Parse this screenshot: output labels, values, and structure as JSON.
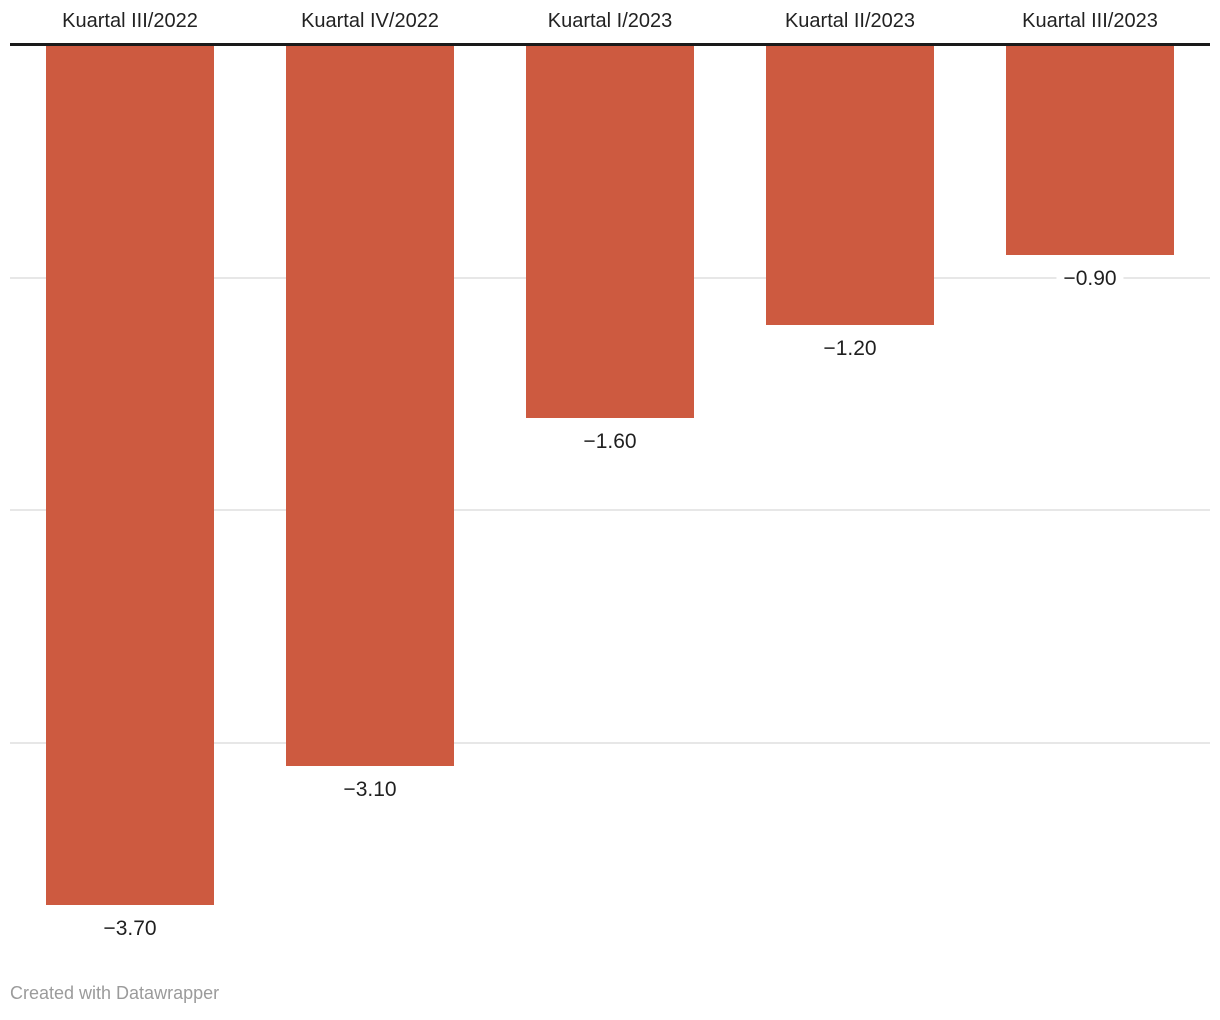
{
  "chart_data": {
    "type": "bar",
    "categories": [
      "Kuartal III/2022",
      "Kuartal IV/2022",
      "Kuartal I/2023",
      "Kuartal II/2023",
      "Kuartal III/2023"
    ],
    "values": [
      -3.7,
      -3.1,
      -1.6,
      -1.2,
      -0.9
    ],
    "value_labels": [
      "−3.70",
      "−3.10",
      "−1.60",
      "−1.20",
      "−0.90"
    ],
    "title": "",
    "xlabel": "",
    "ylabel": "",
    "ylim": [
      -4,
      0
    ],
    "gridline_values": [
      -1,
      -2,
      -3
    ],
    "bar_color": "#cd5a40",
    "baseline_color": "#1a1a1a",
    "gridline_color": "#e7e7e7",
    "grid": "on",
    "legend_position": "none",
    "orientation": "vertical-negative-from-top-baseline"
  },
  "footer": {
    "credit": "Created with Datawrapper"
  }
}
